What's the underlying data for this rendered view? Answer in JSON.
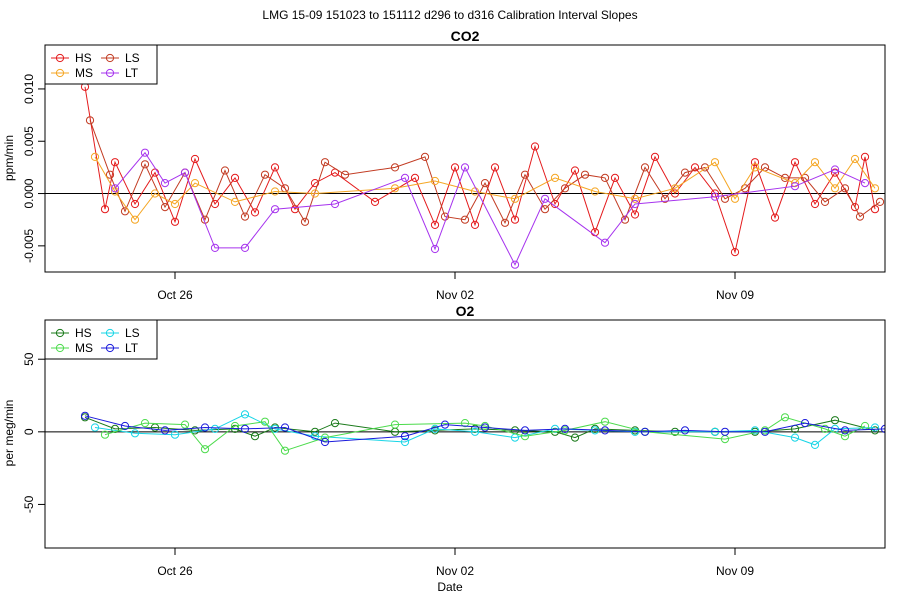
{
  "figure": {
    "title": "LMG   15-09    151023 to 151112    d296 to d316   Calibration Interval Slopes",
    "xlabel": "Date"
  },
  "chart_data": [
    {
      "type": "line",
      "title": "CO2",
      "ylabel": "ppm/min",
      "xlim": [
        "2015-10-22T18:00",
        "2015-11-12T18:00"
      ],
      "ylim": [
        -0.0075,
        0.0142
      ],
      "x_ticks": [
        "Oct 26",
        "Nov 02",
        "Nov 09"
      ],
      "y_ticks": [
        "-0.005",
        "0.000",
        "0.005",
        "0.010"
      ],
      "hline": 0,
      "legend": {
        "position": "top-left",
        "entries": [
          "HS",
          "LS",
          "MS",
          "LT"
        ]
      },
      "series": [
        {
          "name": "HS",
          "color": "#e41a1c",
          "points": [
            [
              "2015-10-23T18:00",
              0.0102
            ],
            [
              "2015-10-24T06:00",
              -0.0015
            ],
            [
              "2015-10-24T12:00",
              0.003
            ],
            [
              "2015-10-25T00:00",
              -0.001
            ],
            [
              "2015-10-25T12:00",
              0.002
            ],
            [
              "2015-10-26T00:00",
              -0.0027
            ],
            [
              "2015-10-26T12:00",
              0.0033
            ],
            [
              "2015-10-27T00:00",
              -0.001
            ],
            [
              "2015-10-27T12:00",
              0.0015
            ],
            [
              "2015-10-28T00:00",
              -0.0018
            ],
            [
              "2015-10-28T12:00",
              0.0025
            ],
            [
              "2015-10-29T00:00",
              -0.0015
            ],
            [
              "2015-10-29T12:00",
              0.001
            ],
            [
              "2015-10-30T00:00",
              0.002
            ],
            [
              "2015-10-31T00:00",
              -0.0008
            ],
            [
              "2015-11-01T00:00",
              0.0015
            ],
            [
              "2015-11-01T12:00",
              -0.003
            ],
            [
              "2015-11-02T00:00",
              0.0025
            ],
            [
              "2015-11-02T12:00",
              -0.003
            ],
            [
              "2015-11-03T00:00",
              0.0025
            ],
            [
              "2015-11-03T12:00",
              -0.0025
            ],
            [
              "2015-11-04T00:00",
              0.0045
            ],
            [
              "2015-11-04T12:00",
              -0.001
            ],
            [
              "2015-11-05T00:00",
              0.0022
            ],
            [
              "2015-11-05T12:00",
              -0.0037
            ],
            [
              "2015-11-06T00:00",
              0.0015
            ],
            [
              "2015-11-06T12:00",
              -0.002
            ],
            [
              "2015-11-07T00:00",
              0.0035
            ],
            [
              "2015-11-07T12:00",
              0.0
            ],
            [
              "2015-11-08T00:00",
              0.0025
            ],
            [
              "2015-11-08T12:00",
              0.0
            ],
            [
              "2015-11-09T00:00",
              -0.0056
            ],
            [
              "2015-11-09T12:00",
              0.003
            ],
            [
              "2015-11-10T00:00",
              -0.0023
            ],
            [
              "2015-11-10T12:00",
              0.003
            ],
            [
              "2015-11-11T00:00",
              -0.001
            ],
            [
              "2015-11-11T12:00",
              0.002
            ],
            [
              "2015-11-12T00:00",
              -0.0013
            ],
            [
              "2015-11-12T06:00",
              0.0035
            ],
            [
              "2015-11-12T12:00",
              -0.0015
            ]
          ]
        },
        {
          "name": "LS",
          "color": "#c23b22",
          "points": [
            [
              "2015-10-23T21:00",
              0.007
            ],
            [
              "2015-10-24T09:00",
              0.0018
            ],
            [
              "2015-10-24T18:00",
              -0.0017
            ],
            [
              "2015-10-25T06:00",
              0.0028
            ],
            [
              "2015-10-25T18:00",
              -0.0013
            ],
            [
              "2015-10-26T06:00",
              0.002
            ],
            [
              "2015-10-26T18:00",
              -0.0025
            ],
            [
              "2015-10-27T06:00",
              0.0022
            ],
            [
              "2015-10-27T18:00",
              -0.0022
            ],
            [
              "2015-10-28T06:00",
              0.0018
            ],
            [
              "2015-10-28T18:00",
              0.0005
            ],
            [
              "2015-10-29T06:00",
              -0.0027
            ],
            [
              "2015-10-29T18:00",
              0.003
            ],
            [
              "2015-10-30T06:00",
              0.0018
            ],
            [
              "2015-10-31T12:00",
              0.0025
            ],
            [
              "2015-11-01T06:00",
              0.0035
            ],
            [
              "2015-11-01T18:00",
              -0.0022
            ],
            [
              "2015-11-02T06:00",
              -0.0025
            ],
            [
              "2015-11-02T18:00",
              0.001
            ],
            [
              "2015-11-03T06:00",
              -0.0028
            ],
            [
              "2015-11-03T18:00",
              0.0018
            ],
            [
              "2015-11-04T06:00",
              -0.0015
            ],
            [
              "2015-11-04T18:00",
              0.0005
            ],
            [
              "2015-11-05T06:00",
              0.0018
            ],
            [
              "2015-11-05T18:00",
              0.0015
            ],
            [
              "2015-11-06T06:00",
              -0.0025
            ],
            [
              "2015-11-06T18:00",
              0.0025
            ],
            [
              "2015-11-07T06:00",
              -0.0005
            ],
            [
              "2015-11-07T18:00",
              0.002
            ],
            [
              "2015-11-08T06:00",
              0.0025
            ],
            [
              "2015-11-08T18:00",
              -0.0005
            ],
            [
              "2015-11-09T06:00",
              0.0005
            ],
            [
              "2015-11-09T18:00",
              0.0025
            ],
            [
              "2015-11-10T06:00",
              0.0015
            ],
            [
              "2015-11-10T18:00",
              0.0015
            ],
            [
              "2015-11-11T06:00",
              -0.0008
            ],
            [
              "2015-11-11T18:00",
              0.0005
            ],
            [
              "2015-11-12T03:00",
              -0.0022
            ],
            [
              "2015-11-12T15:00",
              -0.0008
            ]
          ]
        },
        {
          "name": "MS",
          "color": "#f5a623",
          "points": [
            [
              "2015-10-24T00:00",
              0.0035
            ],
            [
              "2015-10-24T12:00",
              0.0002
            ],
            [
              "2015-10-25T00:00",
              -0.0025
            ],
            [
              "2015-10-25T12:00",
              0.0
            ],
            [
              "2015-10-26T00:00",
              -0.001
            ],
            [
              "2015-10-26T12:00",
              0.001
            ],
            [
              "2015-10-27T12:00",
              -0.0008
            ],
            [
              "2015-10-28T12:00",
              0.0002
            ],
            [
              "2015-10-29T12:00",
              0.0
            ],
            [
              "2015-10-31T12:00",
              0.0005
            ],
            [
              "2015-11-01T12:00",
              0.0012
            ],
            [
              "2015-11-02T12:00",
              0.0002
            ],
            [
              "2015-11-03T12:00",
              -0.0005
            ],
            [
              "2015-11-04T12:00",
              0.0015
            ],
            [
              "2015-11-05T12:00",
              0.0002
            ],
            [
              "2015-11-06T12:00",
              -0.0005
            ],
            [
              "2015-11-07T12:00",
              0.0005
            ],
            [
              "2015-11-08T12:00",
              0.003
            ],
            [
              "2015-11-09T00:00",
              -0.0005
            ],
            [
              "2015-11-09T12:00",
              0.0025
            ],
            [
              "2015-11-10T12:00",
              0.001
            ],
            [
              "2015-11-11T00:00",
              0.003
            ],
            [
              "2015-11-11T12:00",
              0.0005
            ],
            [
              "2015-11-12T00:00",
              0.0033
            ],
            [
              "2015-11-12T12:00",
              0.0005
            ]
          ]
        },
        {
          "name": "LT",
          "color": "#a633ee",
          "points": [
            [
              "2015-10-24T12:00",
              0.0005
            ],
            [
              "2015-10-25T06:00",
              0.0039
            ],
            [
              "2015-10-25T18:00",
              0.001
            ],
            [
              "2015-10-26T06:00",
              0.002
            ],
            [
              "2015-10-27T00:00",
              -0.0052
            ],
            [
              "2015-10-27T18:00",
              -0.0052
            ],
            [
              "2015-10-28T12:00",
              -0.0015
            ],
            [
              "2015-10-30T00:00",
              -0.001
            ],
            [
              "2015-10-31T18:00",
              0.0015
            ],
            [
              "2015-11-01T12:00",
              -0.0053
            ],
            [
              "2015-11-02T06:00",
              0.0025
            ],
            [
              "2015-11-03T12:00",
              -0.0068
            ],
            [
              "2015-11-04T06:00",
              -0.0005
            ],
            [
              "2015-11-05T18:00",
              -0.0047
            ],
            [
              "2015-11-06T12:00",
              -0.001
            ],
            [
              "2015-11-08T12:00",
              -0.0003
            ],
            [
              "2015-11-10T12:00",
              0.0007
            ],
            [
              "2015-11-11T12:00",
              0.0023
            ],
            [
              "2015-11-12T06:00",
              0.001
            ]
          ]
        }
      ]
    },
    {
      "type": "line",
      "title": "O2",
      "ylabel": "per meg/min",
      "xlim": [
        "2015-10-22T18:00",
        "2015-11-12T18:00"
      ],
      "ylim": [
        -80,
        77
      ],
      "x_ticks": [
        "Oct 26",
        "Nov 02",
        "Nov 09"
      ],
      "y_ticks": [
        "-50",
        "0",
        "50"
      ],
      "hline": 0,
      "legend": {
        "position": "top-left",
        "entries": [
          "HS",
          "LS",
          "MS",
          "LT"
        ]
      },
      "series": [
        {
          "name": "HS",
          "color": "#1a7a1a",
          "points": [
            [
              "2015-10-23T18:00",
              10
            ],
            [
              "2015-10-24T12:00",
              2
            ],
            [
              "2015-10-25T12:00",
              3
            ],
            [
              "2015-10-26T12:00",
              1
            ],
            [
              "2015-10-27T12:00",
              2
            ],
            [
              "2015-10-28T00:00",
              -3
            ],
            [
              "2015-10-28T12:00",
              3
            ],
            [
              "2015-10-29T12:00",
              0
            ],
            [
              "2015-10-30T00:00",
              6
            ],
            [
              "2015-10-31T12:00",
              0
            ],
            [
              "2015-11-01T12:00",
              1
            ],
            [
              "2015-11-02T12:00",
              2
            ],
            [
              "2015-11-03T12:00",
              1
            ],
            [
              "2015-11-04T12:00",
              0
            ],
            [
              "2015-11-05T00:00",
              -4
            ],
            [
              "2015-11-05T12:00",
              2
            ],
            [
              "2015-11-06T12:00",
              1
            ],
            [
              "2015-11-07T12:00",
              0
            ],
            [
              "2015-11-08T12:00",
              0
            ],
            [
              "2015-11-09T12:00",
              0
            ],
            [
              "2015-11-10T12:00",
              2
            ],
            [
              "2015-11-11T12:00",
              8
            ],
            [
              "2015-11-12T12:00",
              1
            ]
          ]
        },
        {
          "name": "LS",
          "color": "#17d5e6",
          "points": [
            [
              "2015-10-24T00:00",
              3
            ],
            [
              "2015-10-25T00:00",
              -1
            ],
            [
              "2015-10-26T00:00",
              -2
            ],
            [
              "2015-10-27T00:00",
              2
            ],
            [
              "2015-10-27T18:00",
              12
            ],
            [
              "2015-10-28T12:00",
              2
            ],
            [
              "2015-10-29T12:00",
              -3
            ],
            [
              "2015-10-31T18:00",
              -7
            ],
            [
              "2015-11-01T12:00",
              2
            ],
            [
              "2015-11-02T12:00",
              0
            ],
            [
              "2015-11-03T12:00",
              -4
            ],
            [
              "2015-11-04T12:00",
              2
            ],
            [
              "2015-11-05T12:00",
              1
            ],
            [
              "2015-11-06T12:00",
              0
            ],
            [
              "2015-11-08T12:00",
              0
            ],
            [
              "2015-11-09T12:00",
              1
            ],
            [
              "2015-11-10T12:00",
              -4
            ],
            [
              "2015-11-11T00:00",
              -9
            ],
            [
              "2015-11-11T12:00",
              2
            ],
            [
              "2015-11-12T12:00",
              3
            ]
          ]
        },
        {
          "name": "MS",
          "color": "#4cdb4c",
          "points": [
            [
              "2015-10-24T06:00",
              -2
            ],
            [
              "2015-10-25T06:00",
              6
            ],
            [
              "2015-10-26T06:00",
              5
            ],
            [
              "2015-10-26T18:00",
              -12
            ],
            [
              "2015-10-27T12:00",
              4
            ],
            [
              "2015-10-28T06:00",
              7
            ],
            [
              "2015-10-28T18:00",
              -13
            ],
            [
              "2015-10-29T18:00",
              -4
            ],
            [
              "2015-10-31T12:00",
              5
            ],
            [
              "2015-11-02T06:00",
              6
            ],
            [
              "2015-11-02T18:00",
              4
            ],
            [
              "2015-11-03T18:00",
              -3
            ],
            [
              "2015-11-04T18:00",
              1
            ],
            [
              "2015-11-05T18:00",
              7
            ],
            [
              "2015-11-06T18:00",
              0
            ],
            [
              "2015-11-08T18:00",
              -5
            ],
            [
              "2015-11-09T18:00",
              1
            ],
            [
              "2015-11-10T06:00",
              10
            ],
            [
              "2015-11-11T06:00",
              2
            ],
            [
              "2015-11-11T18:00",
              -3
            ],
            [
              "2015-11-12T06:00",
              4
            ]
          ]
        },
        {
          "name": "LT",
          "color": "#1a1adb",
          "points": [
            [
              "2015-10-23T18:00",
              11
            ],
            [
              "2015-10-24T18:00",
              4
            ],
            [
              "2015-10-25T18:00",
              1
            ],
            [
              "2015-10-26T18:00",
              3
            ],
            [
              "2015-10-27T18:00",
              2
            ],
            [
              "2015-10-28T18:00",
              3
            ],
            [
              "2015-10-29T18:00",
              -7
            ],
            [
              "2015-10-31T18:00",
              -3
            ],
            [
              "2015-11-01T18:00",
              5
            ],
            [
              "2015-11-02T18:00",
              3
            ],
            [
              "2015-11-03T18:00",
              1
            ],
            [
              "2015-11-04T18:00",
              2
            ],
            [
              "2015-11-05T18:00",
              1
            ],
            [
              "2015-11-06T18:00",
              0
            ],
            [
              "2015-11-07T18:00",
              1
            ],
            [
              "2015-11-08T18:00",
              0
            ],
            [
              "2015-11-09T18:00",
              0
            ],
            [
              "2015-11-10T18:00",
              6
            ],
            [
              "2015-11-11T18:00",
              1
            ],
            [
              "2015-11-12T18:00",
              2
            ]
          ]
        }
      ]
    }
  ]
}
